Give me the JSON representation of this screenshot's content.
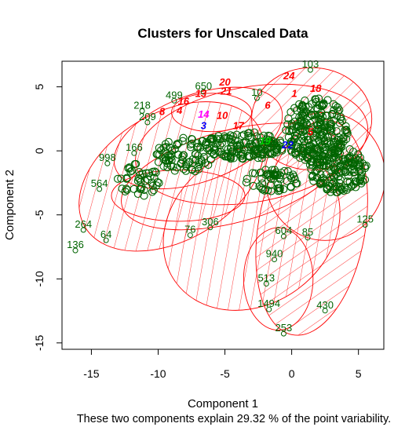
{
  "chart_data": {
    "type": "scatter",
    "title": "Clusters for Unscaled Data",
    "xlabel": "Component 1",
    "ylabel": "Component 2",
    "caption": "These two components explain 29.32 % of the point variability.",
    "xlim": [
      -17.2,
      6.9
    ],
    "ylim": [
      -15.5,
      7.0
    ],
    "xticks": [
      -15,
      -10,
      -5,
      0,
      5
    ],
    "yticks": [
      -15,
      -10,
      -5,
      0,
      5
    ],
    "grid": false,
    "colors": {
      "points": "#006400",
      "ellipses": "#ff0000",
      "cluster_red": "#ff0000",
      "cluster_blue": "#0000ff",
      "cluster_magenta": "#ff00ff",
      "cluster_green": "#00cd00"
    },
    "labeled_points": [
      {
        "label": "650",
        "x": -6.6,
        "y": 4.8
      },
      {
        "label": "499",
        "x": -8.8,
        "y": 4.1
      },
      {
        "label": "218",
        "x": -11.2,
        "y": 3.3
      },
      {
        "label": "209",
        "x": -10.8,
        "y": 2.4
      },
      {
        "label": "166",
        "x": -11.8,
        "y": 0.0
      },
      {
        "label": "998",
        "x": -13.8,
        "y": -0.8
      },
      {
        "label": "564",
        "x": -14.4,
        "y": -2.8
      },
      {
        "label": "264",
        "x": -15.6,
        "y": -6.0
      },
      {
        "label": "64",
        "x": -13.9,
        "y": -6.8
      },
      {
        "label": "136",
        "x": -16.2,
        "y": -7.6
      },
      {
        "label": "306",
        "x": -6.1,
        "y": -5.8
      },
      {
        "label": "76",
        "x": -7.6,
        "y": -6.4
      },
      {
        "label": "604",
        "x": -0.6,
        "y": -6.5
      },
      {
        "label": "85",
        "x": 1.2,
        "y": -6.6
      },
      {
        "label": "125",
        "x": 5.5,
        "y": -5.6
      },
      {
        "label": "940",
        "x": -1.3,
        "y": -8.3
      },
      {
        "label": "513",
        "x": -1.9,
        "y": -10.2
      },
      {
        "label": "1494",
        "x": -1.7,
        "y": -12.2
      },
      {
        "label": "430",
        "x": 2.5,
        "y": -12.3
      },
      {
        "label": "253",
        "x": -0.6,
        "y": -14.1
      },
      {
        "label": "103",
        "x": 1.4,
        "y": 6.5
      },
      {
        "label": "10",
        "x": -2.6,
        "y": 4.3
      }
    ],
    "cluster_labels": [
      {
        "label": "20",
        "x": -5.0,
        "y": 5.1,
        "color": "#ff0000"
      },
      {
        "label": "13",
        "x": -6.8,
        "y": 4.2,
        "color": "#ff0000"
      },
      {
        "label": "21",
        "x": -4.9,
        "y": 4.4,
        "color": "#ff0000"
      },
      {
        "label": "16",
        "x": -8.1,
        "y": 3.6,
        "color": "#ff0000"
      },
      {
        "label": "8",
        "x": -9.7,
        "y": 2.8,
        "color": "#ff0000"
      },
      {
        "label": "4",
        "x": -8.4,
        "y": 2.9,
        "color": "#ff0000"
      },
      {
        "label": "14",
        "x": -6.6,
        "y": 2.6,
        "color": "#ff00ff"
      },
      {
        "label": "10",
        "x": -5.2,
        "y": 2.5,
        "color": "#ff0000"
      },
      {
        "label": "3",
        "x": -6.6,
        "y": 1.7,
        "color": "#0000ff"
      },
      {
        "label": "17",
        "x": -4.0,
        "y": 1.7,
        "color": "#ff0000"
      },
      {
        "label": "6",
        "x": -1.8,
        "y": 3.3,
        "color": "#ff0000"
      },
      {
        "label": "1",
        "x": 0.2,
        "y": 4.2,
        "color": "#ff0000"
      },
      {
        "label": "18",
        "x": 1.8,
        "y": 4.6,
        "color": "#ff0000"
      },
      {
        "label": "24",
        "x": -0.2,
        "y": 5.6,
        "color": "#ff0000"
      },
      {
        "label": "5",
        "x": 1.4,
        "y": 1.2,
        "color": "#ff0000"
      },
      {
        "label": "22",
        "x": -0.3,
        "y": 0.2,
        "color": "#0000ff"
      },
      {
        "label": "19",
        "x": -2.0,
        "y": 0.5,
        "color": "#00cd00"
      }
    ],
    "ellipses": [
      {
        "cx": -7.0,
        "cy": 1.0,
        "rx": 6.6,
        "ry": 3.4,
        "rot": 20,
        "hatch": false
      },
      {
        "cx": -9.0,
        "cy": -2.0,
        "rx": 7.5,
        "ry": 5.0,
        "rot": 30,
        "hatch": true
      },
      {
        "cx": -4.5,
        "cy": -2.0,
        "rx": 8.5,
        "ry": 3.6,
        "rot": 15,
        "hatch": false
      },
      {
        "cx": -3.0,
        "cy": 0.5,
        "rx": 8.8,
        "ry": 4.5,
        "rot": 10,
        "hatch": false
      },
      {
        "cx": 1.5,
        "cy": 2.5,
        "rx": 4.5,
        "ry": 4.0,
        "rot": 0,
        "hatch": true
      },
      {
        "cx": 1.5,
        "cy": -6.0,
        "rx": 4.0,
        "ry": 8.5,
        "rot": -10,
        "hatch": true
      },
      {
        "cx": -3.0,
        "cy": -6.0,
        "rx": 7.0,
        "ry": 6.0,
        "rot": 35,
        "hatch": true
      },
      {
        "cx": -1.0,
        "cy": -10.0,
        "rx": 2.6,
        "ry": 4.0,
        "rot": 0,
        "hatch": false
      },
      {
        "cx": 2.5,
        "cy": -2.0,
        "rx": 4.5,
        "ry": 5.0,
        "rot": 0,
        "hatch": false
      },
      {
        "cx": -6.0,
        "cy": 3.0,
        "rx": 3.0,
        "ry": 1.5,
        "rot": 0,
        "hatch": false
      },
      {
        "cx": -8.5,
        "cy": -3.5,
        "rx": 5.0,
        "ry": 2.0,
        "rot": 0,
        "hatch": false
      }
    ]
  }
}
